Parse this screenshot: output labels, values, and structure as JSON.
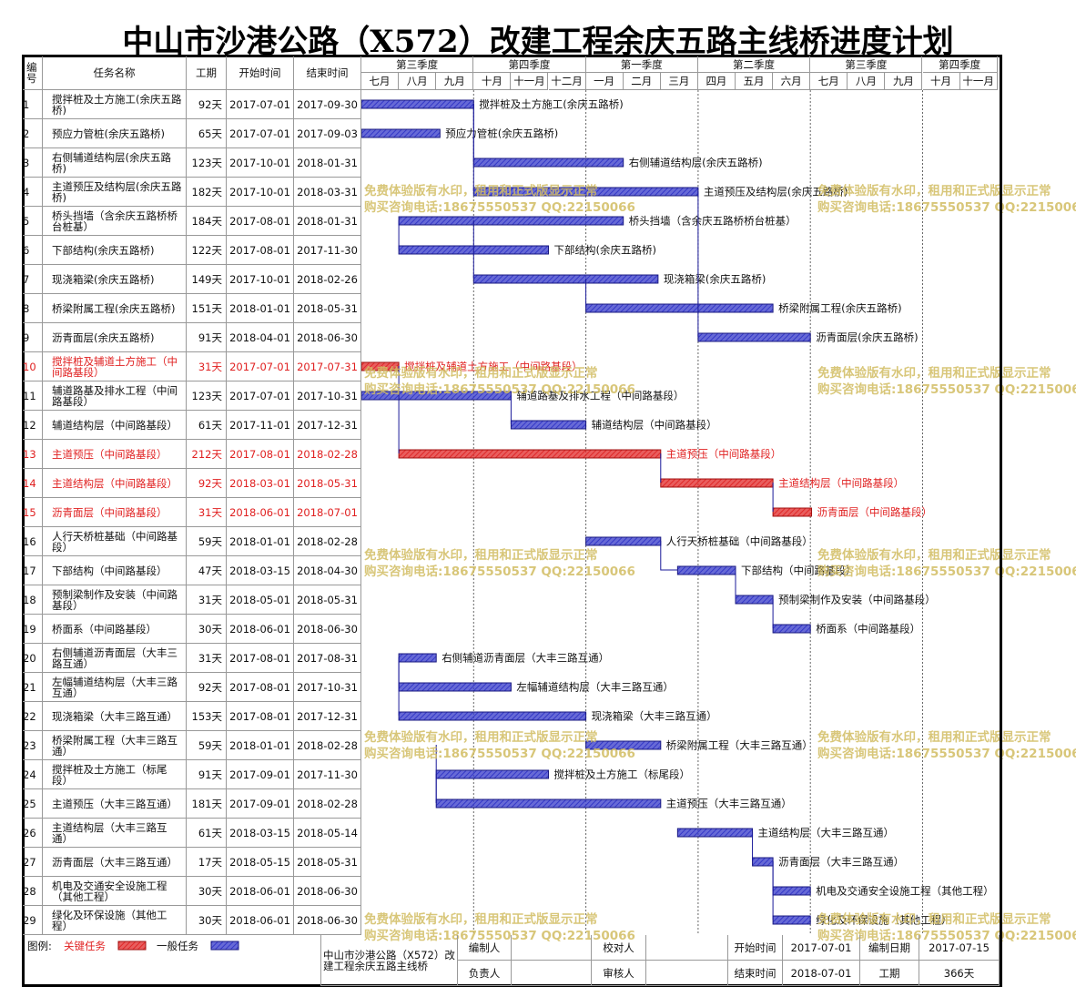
{
  "title": "中山市沙港公路（X572）改建工程余庆五路主线桥进度计划",
  "columns": [
    "编号",
    "任务名称",
    "工期",
    "开始时间",
    "结束时间"
  ],
  "quarters": [
    "第三季度",
    "第四季度",
    "第一季度",
    "第二季度",
    "第三季度",
    "第四季度"
  ],
  "months": [
    "七月",
    "八月",
    "九月",
    "十月",
    "十一月",
    "十二月",
    "一月",
    "二月",
    "三月",
    "四月",
    "五月",
    "六月",
    "七月",
    "八月",
    "九月",
    "十月",
    "十一月"
  ],
  "tasks": [
    {
      "id": 1,
      "name": "搅拌桩及土方施工(余庆五路桥)",
      "duration": "92天",
      "start": "2017-07-01",
      "end": "2017-09-30",
      "critical": false
    },
    {
      "id": 2,
      "name": "预应力管桩(余庆五路桥)",
      "duration": "65天",
      "start": "2017-07-01",
      "end": "2017-09-03",
      "critical": false
    },
    {
      "id": 3,
      "name": "右侧辅道结构层(余庆五路桥)",
      "duration": "123天",
      "start": "2017-10-01",
      "end": "2018-01-31",
      "critical": false
    },
    {
      "id": 4,
      "name": "主道预压及结构层(余庆五路桥)",
      "duration": "182天",
      "start": "2017-10-01",
      "end": "2018-03-31",
      "critical": false
    },
    {
      "id": 5,
      "name": "桥头挡墙（含余庆五路桥桥台桩基）",
      "duration": "184天",
      "start": "2017-08-01",
      "end": "2018-01-31",
      "critical": false
    },
    {
      "id": 6,
      "name": "下部结构(余庆五路桥)",
      "duration": "122天",
      "start": "2017-08-01",
      "end": "2017-11-30",
      "critical": false
    },
    {
      "id": 7,
      "name": "现浇箱梁(余庆五路桥)",
      "duration": "149天",
      "start": "2017-10-01",
      "end": "2018-02-26",
      "critical": false
    },
    {
      "id": 8,
      "name": "桥梁附属工程(余庆五路桥)",
      "duration": "151天",
      "start": "2018-01-01",
      "end": "2018-05-31",
      "critical": false
    },
    {
      "id": 9,
      "name": "沥青面层(余庆五路桥)",
      "duration": "91天",
      "start": "2018-04-01",
      "end": "2018-06-30",
      "critical": false
    },
    {
      "id": 10,
      "name": "搅拌桩及辅道土方施工（中间路基段）",
      "duration": "31天",
      "start": "2017-07-01",
      "end": "2017-07-31",
      "critical": true
    },
    {
      "id": 11,
      "name": "辅道路基及排水工程（中间路基段）",
      "duration": "123天",
      "start": "2017-07-01",
      "end": "2017-10-31",
      "critical": false
    },
    {
      "id": 12,
      "name": "辅道结构层（中间路基段）",
      "duration": "61天",
      "start": "2017-11-01",
      "end": "2017-12-31",
      "critical": false
    },
    {
      "id": 13,
      "name": "主道预压（中间路基段）",
      "duration": "212天",
      "start": "2017-08-01",
      "end": "2018-02-28",
      "critical": true
    },
    {
      "id": 14,
      "name": "主道结构层（中间路基段）",
      "duration": "92天",
      "start": "2018-03-01",
      "end": "2018-05-31",
      "critical": true
    },
    {
      "id": 15,
      "name": "沥青面层（中间路基段）",
      "duration": "31天",
      "start": "2018-06-01",
      "end": "2018-07-01",
      "critical": true
    },
    {
      "id": 16,
      "name": "人行天桥桩基础（中间路基段）",
      "duration": "59天",
      "start": "2018-01-01",
      "end": "2018-02-28",
      "critical": false
    },
    {
      "id": 17,
      "name": "下部结构（中间路基段）",
      "duration": "47天",
      "start": "2018-03-15",
      "end": "2018-04-30",
      "critical": false
    },
    {
      "id": 18,
      "name": "预制梁制作及安装（中间路基段）",
      "duration": "31天",
      "start": "2018-05-01",
      "end": "2018-05-31",
      "critical": false
    },
    {
      "id": 19,
      "name": "桥面系（中间路基段）",
      "duration": "30天",
      "start": "2018-06-01",
      "end": "2018-06-30",
      "critical": false
    },
    {
      "id": 20,
      "name": "右侧辅道沥青面层（大丰三路互通）",
      "duration": "31天",
      "start": "2017-08-01",
      "end": "2017-08-31",
      "critical": false
    },
    {
      "id": 21,
      "name": "左幅辅道结构层（大丰三路互通）",
      "duration": "92天",
      "start": "2017-08-01",
      "end": "2017-10-31",
      "critical": false
    },
    {
      "id": 22,
      "name": "现浇箱梁（大丰三路互通）",
      "duration": "153天",
      "start": "2017-08-01",
      "end": "2017-12-31",
      "critical": false
    },
    {
      "id": 23,
      "name": "桥梁附属工程（大丰三路互通）",
      "duration": "59天",
      "start": "2018-01-01",
      "end": "2018-02-28",
      "critical": false
    },
    {
      "id": 24,
      "name": "搅拌桩及土方施工（标尾段）",
      "duration": "91天",
      "start": "2017-09-01",
      "end": "2017-11-30",
      "critical": false
    },
    {
      "id": 25,
      "name": "主道预压（大丰三路互通）",
      "duration": "181天",
      "start": "2017-09-01",
      "end": "2018-02-28",
      "critical": false
    },
    {
      "id": 26,
      "name": "主道结构层（大丰三路互通）",
      "duration": "61天",
      "start": "2018-03-15",
      "end": "2018-05-14",
      "critical": false
    },
    {
      "id": 27,
      "name": "沥青面层（大丰三路互通）",
      "duration": "17天",
      "start": "2018-05-15",
      "end": "2018-05-31",
      "critical": false
    },
    {
      "id": 28,
      "name": "机电及交通安全设施工程（其他工程）",
      "duration": "30天",
      "start": "2018-06-01",
      "end": "2018-06-30",
      "critical": false
    },
    {
      "id": 29,
      "name": "绿化及环保设施（其他工程）",
      "duration": "30天",
      "start": "2018-06-01",
      "end": "2018-06-30",
      "critical": false
    }
  ],
  "legend": {
    "label": "图例:",
    "critical": {
      "label": "关键任务",
      "color": "#e02828"
    },
    "normal": {
      "label": "一般任务",
      "color": "#3438c8"
    }
  },
  "footer": {
    "project": "中山市沙港公路（X572）改建工程余庆五路主线桥",
    "prepared_by_label": "编制人",
    "checked_by_label": "校对人",
    "start_label": "开始时间",
    "start": "2017-07-01",
    "prepared_date_label": "编制日期",
    "prepared_date": "2017-07-15",
    "responsible_label": "负责人",
    "reviewed_by_label": "审核人",
    "end_label": "结束时间",
    "end": "2018-07-01",
    "duration_label": "工期",
    "duration": "366天"
  },
  "watermark": {
    "line1": "免费体验版有水印，租用和正式版显示正常",
    "line2": "购买咨询电话:18675550537 QQ:22150066"
  }
}
